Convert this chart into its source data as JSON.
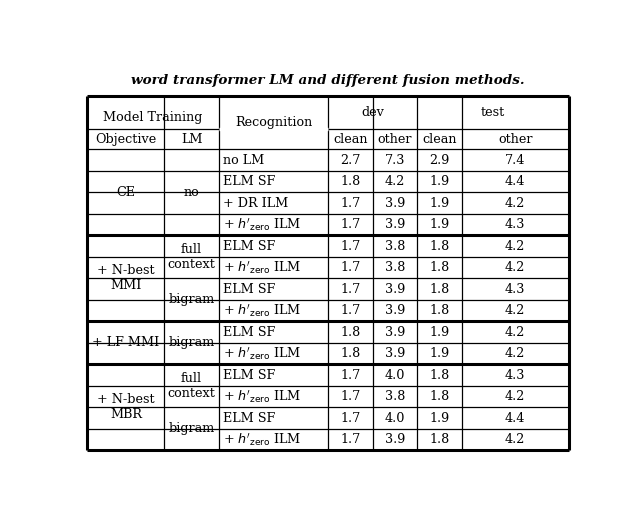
{
  "title": "word transformer LM and different fusion methods.",
  "figsize": [
    6.4,
    5.27
  ],
  "dpi": 100,
  "background": "#ffffff",
  "sections": [
    {
      "label": "CE",
      "lm_groups": [
        {
          "lm": "no",
          "rows": [
            [
              "no LM",
              "2.7",
              "7.3",
              "2.9",
              "7.4"
            ],
            [
              "ELM SF",
              "1.8",
              "4.2",
              "1.9",
              "4.4"
            ],
            [
              "+ DR ILM",
              "1.7",
              "3.9",
              "1.9",
              "4.2"
            ],
            [
              "+ $h'_{\\rm zero}$ ILM",
              "1.7",
              "3.9",
              "1.9",
              "4.3"
            ]
          ]
        }
      ],
      "thick_border_below": true
    },
    {
      "label": "+ N-best\nMMI",
      "lm_groups": [
        {
          "lm": "full\ncontext",
          "rows": [
            [
              "ELM SF",
              "1.7",
              "3.8",
              "1.8",
              "4.2"
            ],
            [
              "+ $h'_{\\rm zero}$ ILM",
              "1.7",
              "3.8",
              "1.8",
              "4.2"
            ]
          ]
        },
        {
          "lm": "bigram",
          "rows": [
            [
              "ELM SF",
              "1.7",
              "3.9",
              "1.8",
              "4.3"
            ],
            [
              "+ $h'_{\\rm zero}$ ILM",
              "1.7",
              "3.9",
              "1.8",
              "4.2"
            ]
          ]
        }
      ],
      "thick_border_below": true
    },
    {
      "label": "+ LF MMI",
      "lm_groups": [
        {
          "lm": "bigram",
          "rows": [
            [
              "ELM SF",
              "1.8",
              "3.9",
              "1.9",
              "4.2"
            ],
            [
              "+ $h'_{\\rm zero}$ ILM",
              "1.8",
              "3.9",
              "1.9",
              "4.2"
            ]
          ]
        }
      ],
      "thick_border_below": true
    },
    {
      "label": "+ N-best\nMBR",
      "lm_groups": [
        {
          "lm": "full\ncontext",
          "rows": [
            [
              "ELM SF",
              "1.7",
              "4.0",
              "1.8",
              "4.3"
            ],
            [
              "+ $h'_{\\rm zero}$ ILM",
              "1.7",
              "3.8",
              "1.8",
              "4.2"
            ]
          ]
        },
        {
          "lm": "bigram",
          "rows": [
            [
              "ELM SF",
              "1.7",
              "4.0",
              "1.9",
              "4.4"
            ],
            [
              "+ $h'_{\\rm zero}$ ILM",
              "1.7",
              "3.9",
              "1.8",
              "4.2"
            ]
          ]
        }
      ],
      "thick_border_below": false
    }
  ]
}
